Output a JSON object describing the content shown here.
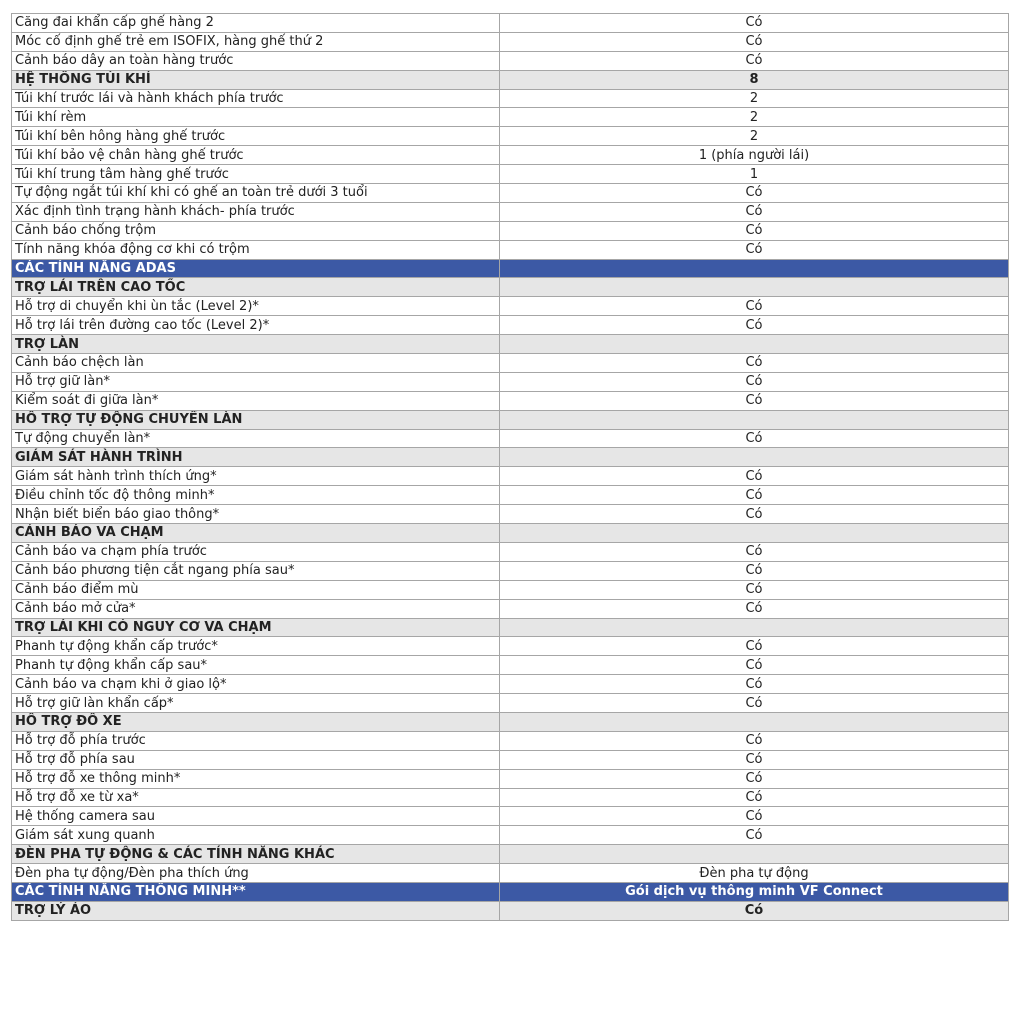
{
  "colors": {
    "section_bg": "#3c59a5",
    "group_bg": "#e6e6e6",
    "border": "#a6a6a6"
  },
  "rows": [
    {
      "type": "item",
      "label": "Căng đai khẩn cấp ghế hàng 2",
      "value": "Có"
    },
    {
      "type": "item",
      "label": "Móc cố định ghế trẻ em ISOFIX, hàng ghế thứ 2",
      "value": "Có"
    },
    {
      "type": "item",
      "label": "Cảnh báo dây an toàn hàng trước",
      "value": "Có"
    },
    {
      "type": "group",
      "label": "HỆ THỐNG TÚI KHÍ",
      "value": "8"
    },
    {
      "type": "item",
      "label": "Túi khí trước lái và hành khách phía trước",
      "value": "2"
    },
    {
      "type": "item",
      "label": "Túi khí rèm",
      "value": "2"
    },
    {
      "type": "item",
      "label": "Túi khí bên hông hàng ghế trước",
      "value": "2"
    },
    {
      "type": "item",
      "label": "Túi khí bảo vệ chân hàng ghế trước",
      "value": "1 (phía người lái)"
    },
    {
      "type": "item",
      "label": "Túi khí trung tâm hàng ghế trước",
      "value": "1"
    },
    {
      "type": "item",
      "label": "Tự động ngắt túi khí khi có ghế an toàn trẻ dưới 3 tuổi",
      "value": "Có"
    },
    {
      "type": "item",
      "label": "Xác định tình trạng hành khách- phía trước",
      "value": "Có"
    },
    {
      "type": "item",
      "label": "Cảnh báo chống trộm",
      "value": "Có"
    },
    {
      "type": "item",
      "label": "Tính năng khóa động cơ khi có trộm",
      "value": "Có"
    },
    {
      "type": "section",
      "label": "CÁC TÍNH NĂNG ADAS",
      "value": ""
    },
    {
      "type": "group",
      "label": "TRỢ LÁI TRÊN CAO TỐC",
      "value": ""
    },
    {
      "type": "item",
      "label": "Hỗ trợ di chuyển khi ùn tắc (Level 2)*",
      "value": "Có"
    },
    {
      "type": "item",
      "label": "Hỗ trợ lái trên đường cao tốc (Level 2)*",
      "value": "Có"
    },
    {
      "type": "group",
      "label": "TRỢ LÀN",
      "value": ""
    },
    {
      "type": "item",
      "label": "Cảnh báo chệch làn",
      "value": "Có"
    },
    {
      "type": "item",
      "label": "Hỗ trợ giữ làn*",
      "value": "Có"
    },
    {
      "type": "item",
      "label": "Kiểm soát đi giữa làn*",
      "value": "Có"
    },
    {
      "type": "group",
      "label": "HỖ TRỢ TỰ ĐỘNG CHUYỂN LÀN",
      "value": ""
    },
    {
      "type": "item",
      "label": "Tự động chuyển làn*",
      "value": "Có"
    },
    {
      "type": "group",
      "label": "GIÁM SÁT HÀNH TRÌNH",
      "value": ""
    },
    {
      "type": "item",
      "label": "Giám sát hành trình thích ứng*",
      "value": "Có"
    },
    {
      "type": "item",
      "label": "Điều chỉnh tốc độ thông minh*",
      "value": "Có"
    },
    {
      "type": "item",
      "label": "Nhận biết biển báo giao thông*",
      "value": "Có"
    },
    {
      "type": "group",
      "label": "CẢNH BÁO VA CHẠM",
      "value": ""
    },
    {
      "type": "item",
      "label": "Cảnh báo va chạm phía trước",
      "value": "Có"
    },
    {
      "type": "item",
      "label": "Cảnh báo phương tiện cắt ngang phía sau*",
      "value": "Có"
    },
    {
      "type": "item",
      "label": "Cảnh báo điểm mù",
      "value": "Có"
    },
    {
      "type": "item",
      "label": "Cảnh báo mở cửa*",
      "value": "Có"
    },
    {
      "type": "group",
      "label": "TRỢ LÁI KHI CÓ NGUY CƠ VA CHẠM",
      "value": ""
    },
    {
      "type": "item",
      "label": "Phanh tự động khẩn cấp trước*",
      "value": "Có"
    },
    {
      "type": "item",
      "label": "Phanh tự động khẩn cấp sau*",
      "value": "Có"
    },
    {
      "type": "item",
      "label": "Cảnh báo va chạm khi ở giao lộ*",
      "value": "Có"
    },
    {
      "type": "item",
      "label": "Hỗ trợ giữ làn khẩn cấp*",
      "value": "Có"
    },
    {
      "type": "group",
      "label": "HỖ TRỢ ĐỖ XE",
      "value": ""
    },
    {
      "type": "item",
      "label": "Hỗ trợ đỗ phía trước",
      "value": "Có"
    },
    {
      "type": "item",
      "label": "Hỗ trợ đỗ phía sau",
      "value": "Có"
    },
    {
      "type": "item",
      "label": "Hỗ trợ đỗ xe thông minh*",
      "value": "Có"
    },
    {
      "type": "item",
      "label": "Hỗ trợ đỗ xe từ xa*",
      "value": "Có"
    },
    {
      "type": "item",
      "label": "Hệ thống camera sau",
      "value": "Có"
    },
    {
      "type": "item",
      "label": "Giám sát xung quanh",
      "value": "Có"
    },
    {
      "type": "group",
      "label": "ĐÈN PHA TỰ ĐỘNG & CÁC TÍNH NĂNG KHÁC",
      "value": ""
    },
    {
      "type": "item",
      "label": "Đèn pha tự động/Đèn pha thích ứng",
      "value": "Đèn pha tự động"
    },
    {
      "type": "section",
      "label": "CÁC TÍNH NĂNG THÔNG MINH**",
      "value": "Gói dịch vụ thông minh VF Connect"
    },
    {
      "type": "group",
      "label": "TRỢ LÝ ẢO",
      "value": "Có"
    }
  ]
}
